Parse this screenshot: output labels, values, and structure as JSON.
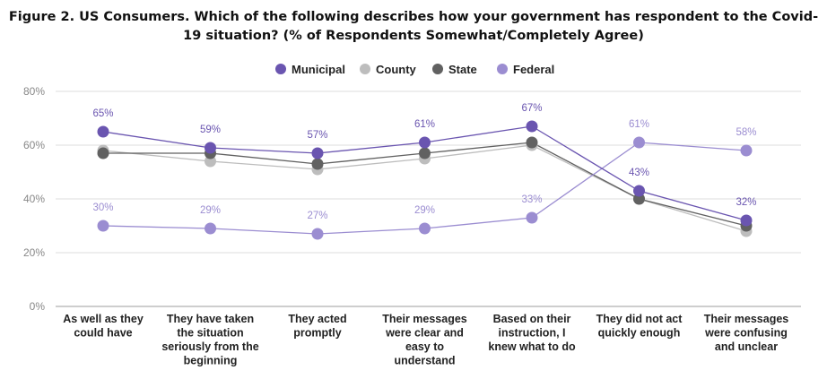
{
  "chart_data": {
    "type": "line",
    "title_lines": [
      "Figure 2. US Consumers. Which of the following describes how your government has respondent to the Covid-",
      "19 situation? (% of Respondents Somewhat/Completely Agree)"
    ],
    "xlabel": "",
    "ylabel": "",
    "ylim": [
      0,
      80
    ],
    "yticks": [
      0,
      20,
      40,
      60,
      80
    ],
    "ytick_labels": [
      "0%",
      "20%",
      "40%",
      "60%",
      "80%"
    ],
    "grid": true,
    "legend_position": "top-center",
    "categories": [
      [
        "As well as they",
        "could have"
      ],
      [
        "They have taken",
        "the situation",
        "seriously from the",
        "beginning"
      ],
      [
        "They acted",
        "promptly"
      ],
      [
        "Their messages",
        "were clear and",
        "easy to",
        "understand"
      ],
      [
        "Based on their",
        "instruction, I",
        "knew what to do"
      ],
      [
        "They did not act",
        "quickly enough"
      ],
      [
        "Their messages",
        "were confusing",
        "and unclear"
      ]
    ],
    "series": [
      {
        "name": "County",
        "color": "#bdbdbd",
        "values": [
          58,
          54,
          51,
          55,
          60,
          40,
          28
        ],
        "labels": null,
        "label_color": null
      },
      {
        "name": "State",
        "color": "#616161",
        "values": [
          57,
          57,
          53,
          57,
          61,
          40,
          30
        ],
        "labels": null,
        "label_color": null
      },
      {
        "name": "Federal",
        "color": "#9b8dd1",
        "values": [
          30,
          29,
          27,
          29,
          33,
          61,
          58
        ],
        "labels": [
          "30%",
          "29%",
          "27%",
          "29%",
          "33%",
          "61%",
          "58%"
        ],
        "label_color": "#9b8dd1"
      },
      {
        "name": "Municipal",
        "color": "#6a55b0",
        "values": [
          65,
          59,
          57,
          61,
          67,
          43,
          32
        ],
        "labels": [
          "65%",
          "59%",
          "57%",
          "61%",
          "67%",
          "43%",
          "32%"
        ],
        "label_color": "#6a55b0"
      }
    ],
    "legend": [
      {
        "name": "Municipal",
        "color": "#6a55b0"
      },
      {
        "name": "County",
        "color": "#bdbdbd"
      },
      {
        "name": "State",
        "color": "#616161"
      },
      {
        "name": "Federal",
        "color": "#9b8dd1"
      }
    ]
  }
}
